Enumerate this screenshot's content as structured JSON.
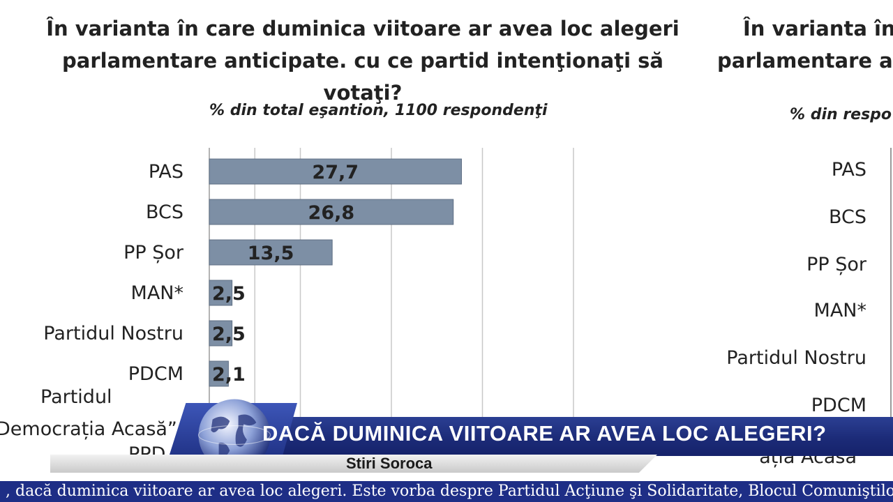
{
  "title_line1": "În varianta în care duminica viitoare ar avea loc alegeri",
  "title_line2": "parlamentare anticipate. cu ce partid intenţionaţi să votaţi?",
  "right_title_line1": "În varianta în c",
  "right_title_line2": "parlamentare an",
  "right_subtitle": "% din respo",
  "right_categories": [
    "PAS",
    "BCS",
    "PP Șor",
    "MAN*",
    "Partidul Nostru",
    "PDCM",
    "ația Acasă”"
  ],
  "overflow_labels": [
    "Partidul",
    "Democrația Acasă”",
    "PPD"
  ],
  "chart_data": {
    "type": "bar",
    "orientation": "horizontal",
    "subtitle": "% din total eşantion, 1100 respondenţi",
    "categories": [
      "PAS",
      "BCS",
      "PP Șor",
      "MAN*",
      "Partidul Nostru",
      "PDCM"
    ],
    "value_labels": [
      "27,7",
      "26,8",
      "13,5",
      "2,5",
      "2,5",
      "2,1"
    ],
    "values": [
      27.7,
      26.8,
      13.5,
      2.5,
      2.5,
      2.1
    ],
    "xlim": [
      0,
      45
    ],
    "grid": true,
    "bar_color": "#7d8fa5"
  },
  "banner": {
    "headline": "DACĂ DUMINICA VIITOARE AR AVEA LOC ALEGERI?",
    "channel": "Stiri Soroca"
  },
  "ticker": {
    "text": ", dacă duminica viitoare ar avea loc alegeri. Este vorba despre Partidul Acţiune şi Solidaritate, Blocul Comuniştilor"
  },
  "colors": {
    "banner": "#1c2b78",
    "ticker": "#1e2e86",
    "bar": "#7d8fa5"
  },
  "icons": [
    "globe-icon"
  ]
}
